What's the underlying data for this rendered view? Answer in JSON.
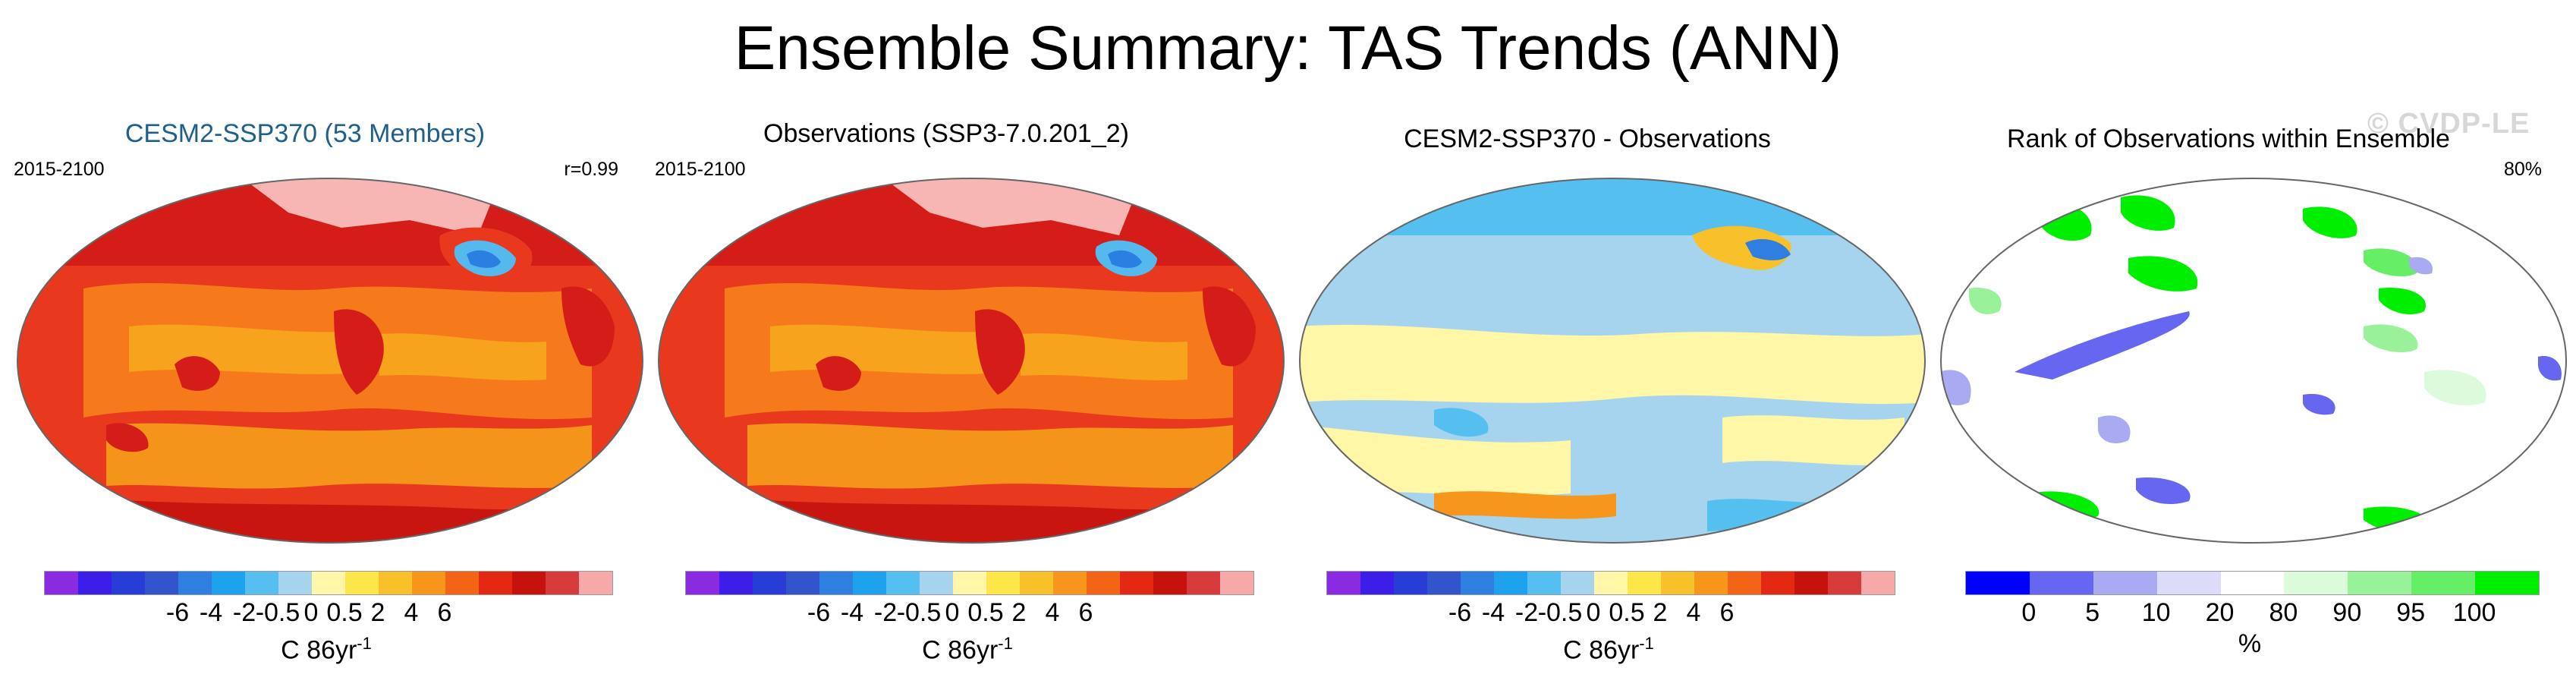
{
  "title": "Ensemble Summary: TAS Trends (ANN)",
  "watermark": "© CVDP-LE",
  "panels": [
    {
      "title": "CESM2-SSP370 (53 Members)",
      "left_label": "2015-2100",
      "right_label": "r=0.99"
    },
    {
      "title": "Observations (SSP3-7.0.201_2)",
      "left_label": "2015-2100",
      "right_label": ""
    },
    {
      "title": "CESM2-SSP370 - Observations",
      "left_label": "",
      "right_label": ""
    },
    {
      "title": "Rank of Observations within Ensemble",
      "left_label": "",
      "right_label": "80%"
    }
  ],
  "trend_colorbar": {
    "ticks": [
      "-6",
      "-4",
      "-2",
      "-0.5",
      "0",
      "0.5",
      "2",
      "4",
      "6"
    ],
    "unit": "C 86yr",
    "unit_exp": "-1",
    "colors": [
      "#8a2be2",
      "#3c1ee6",
      "#2a3cd6",
      "#3355cc",
      "#2e7fe0",
      "#1fa2ee",
      "#55c0f0",
      "#a6d4ee",
      "#fff6a8",
      "#fde64a",
      "#f8c02a",
      "#f6961c",
      "#f26416",
      "#e22a12",
      "#c4120d",
      "#d53b3b",
      "#f7a9a9"
    ]
  },
  "rank_colorbar": {
    "ticks": [
      "0",
      "5",
      "10",
      "20",
      "80",
      "90",
      "95",
      "100"
    ],
    "unit": "%",
    "colors": [
      "#0000ff",
      "#6666f0",
      "#aaaaf2",
      "#dcdcfa",
      "#ffffff",
      "#dcfadc",
      "#99f299",
      "#66ee66",
      "#00ee00"
    ]
  },
  "chart_data": [
    {
      "type": "heatmap",
      "title": "CESM2-SSP370 (53 Members)",
      "period": "2015-2100",
      "pattern_correlation": 0.99,
      "units": "C 86yr-1",
      "colorbar_levels": [
        -6,
        -4,
        -2,
        -0.5,
        0,
        0.5,
        2,
        4,
        6
      ],
      "typical_range": [
        2,
        6
      ]
    },
    {
      "type": "heatmap",
      "title": "Observations (SSP3-7.0.201_2)",
      "period": "2015-2100",
      "units": "C 86yr-1",
      "colorbar_levels": [
        -6,
        -4,
        -2,
        -0.5,
        0,
        0.5,
        2,
        4,
        6
      ],
      "typical_range": [
        2,
        6
      ]
    },
    {
      "type": "heatmap",
      "title": "CESM2-SSP370 - Observations",
      "units": "C 86yr-1",
      "colorbar_levels": [
        -6,
        -4,
        -2,
        -0.5,
        0,
        0.5,
        2,
        4,
        6
      ],
      "typical_range": [
        -0.5,
        0.5
      ]
    },
    {
      "type": "heatmap",
      "title": "Rank of Observations within Ensemble",
      "summary_percent": 80,
      "units": "%",
      "colorbar_levels": [
        0,
        5,
        10,
        20,
        80,
        90,
        95,
        100
      ]
    }
  ]
}
